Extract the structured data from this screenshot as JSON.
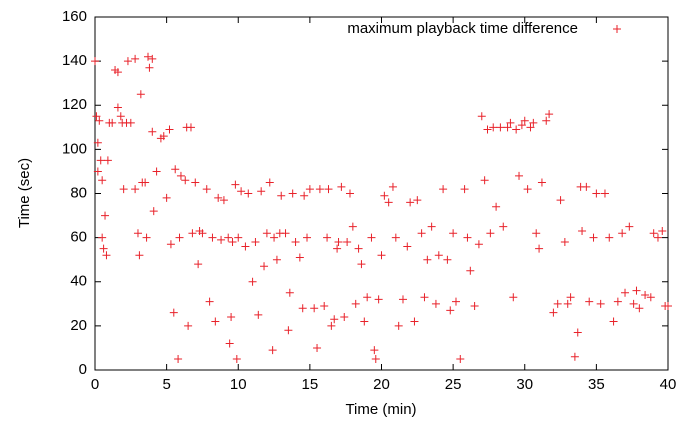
{
  "chart_data": {
    "type": "scatter",
    "xlabel": "Time (min)",
    "ylabel": "Time (sec)",
    "xlim": [
      0,
      40
    ],
    "xticks": [
      0,
      5,
      10,
      15,
      20,
      25,
      30,
      35,
      40
    ],
    "ylim": [
      0,
      160
    ],
    "yticks": [
      0,
      20,
      40,
      60,
      80,
      100,
      120,
      140,
      160
    ],
    "grid": false,
    "legend": "upper right",
    "x": [
      0,
      0.1,
      0.2,
      0.3,
      0.4,
      0.2,
      0.5,
      0.5,
      0.6,
      0.7,
      0.8,
      0.9,
      1,
      1.2,
      1.4,
      1.6,
      1.6,
      1.8,
      1.9,
      2,
      2.2,
      2.3,
      2.5,
      2.8,
      2.8,
      3,
      3.1,
      3.2,
      3.3,
      3.5,
      3.6,
      3.7,
      3.8,
      4,
      4,
      4.1,
      4.3,
      4.6,
      4.8,
      5,
      5.2,
      5.3,
      5.5,
      5.6,
      5.8,
      5.9,
      6,
      6.3,
      6.4,
      6.5,
      6.7,
      6.8,
      7,
      7.2,
      7.3,
      7.5,
      7.8,
      8,
      8.2,
      8.4,
      8.6,
      8.8,
      9,
      9.3,
      9.4,
      9.5,
      9.6,
      9.8,
      9.9,
      10,
      10.2,
      10.5,
      10.7,
      11,
      11.2,
      11.4,
      11.6,
      11.8,
      12,
      12.2,
      12.4,
      12.5,
      12.7,
      12.9,
      13,
      13.3,
      13.5,
      13.6,
      13.8,
      14,
      14.3,
      14.5,
      14.6,
      14.8,
      15,
      15.3,
      15.5,
      15.7,
      16,
      16.2,
      16.3,
      16.5,
      16.7,
      16.9,
      17,
      17.2,
      17.4,
      17.6,
      17.8,
      18,
      18.2,
      18.4,
      18.6,
      18.8,
      19,
      19.3,
      19.5,
      19.6,
      19.8,
      20,
      20.2,
      20.5,
      20.8,
      21,
      21.2,
      21.5,
      21.8,
      22,
      22.3,
      22.5,
      22.8,
      23,
      23.2,
      23.5,
      23.8,
      24,
      24.3,
      24.6,
      24.8,
      25,
      25.2,
      25.5,
      25.8,
      26,
      26.2,
      26.5,
      26.8,
      27,
      27.2,
      27.4,
      27.6,
      27.8,
      28,
      28.3,
      28.5,
      28.8,
      29,
      29.2,
      29.4,
      29.6,
      29.8,
      30,
      30.2,
      30.4,
      30.6,
      30.8,
      31,
      31.2,
      31.5,
      31.7,
      32,
      32.3,
      32.5,
      32.8,
      33,
      33.2,
      33.5,
      33.7,
      33.9,
      34,
      34.3,
      34.5,
      34.8,
      35,
      35.3,
      35.6,
      35.9,
      36.2,
      36.5,
      36.8,
      37,
      37.3,
      37.6,
      37.8,
      38,
      38.4,
      38.8,
      39,
      39.3,
      39.6,
      39.8,
      40
    ],
    "series": [
      {
        "name": "maximum playback time difference",
        "color": "#e8222a",
        "values": [
          140,
          115,
          103,
          113,
          95,
          90,
          86,
          60,
          55,
          70,
          52,
          95,
          112,
          112,
          136,
          135,
          119,
          115,
          112,
          82,
          112,
          140,
          112,
          141,
          82,
          62,
          52,
          125,
          85,
          85,
          60,
          142,
          137,
          141,
          108,
          72,
          90,
          105,
          106,
          78,
          109,
          57,
          26,
          91,
          5,
          60,
          88,
          86,
          110,
          20,
          110,
          62,
          85,
          48,
          63,
          62,
          82,
          31,
          60,
          22,
          78,
          59,
          77,
          60,
          12,
          24,
          58,
          84,
          5,
          60,
          81,
          56,
          80,
          40,
          58,
          25,
          81,
          47,
          62,
          85,
          9,
          60,
          50,
          62,
          79,
          62,
          18,
          35,
          80,
          58,
          51,
          28,
          79,
          60,
          82,
          28,
          10,
          82,
          29,
          60,
          82,
          20,
          23,
          55,
          58,
          83,
          24,
          58,
          80,
          65,
          30,
          55,
          48,
          22,
          33,
          60,
          9,
          5,
          32,
          52,
          79,
          76,
          83,
          60,
          20,
          32,
          56,
          76,
          22,
          77,
          62,
          33,
          50,
          65,
          30,
          52,
          82,
          50,
          27,
          62,
          31,
          5,
          82,
          60,
          45,
          29,
          57,
          115,
          86,
          109,
          62,
          110,
          74,
          110,
          65,
          110,
          112,
          33,
          109,
          88,
          111,
          113,
          82,
          110,
          112,
          62,
          55,
          85,
          113,
          116,
          26,
          30,
          77,
          58,
          30,
          33,
          6,
          17,
          83,
          63,
          83,
          31,
          60,
          80,
          30,
          80,
          60,
          22,
          31,
          62,
          35,
          65,
          30,
          36,
          28,
          34,
          33,
          62,
          60,
          63,
          29,
          29
        ]
      }
    ]
  }
}
